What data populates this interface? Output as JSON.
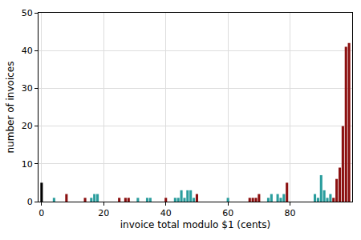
{
  "chart_data": {
    "type": "bar",
    "x_label": "invoice total modulo $1 (cents)",
    "y_label": "number of invoices",
    "x": [
      0,
      4,
      8,
      14,
      16,
      17,
      18,
      25,
      27,
      28,
      31,
      34,
      35,
      40,
      43,
      44,
      45,
      46,
      47,
      48,
      49,
      50,
      60,
      67,
      68,
      69,
      70,
      73,
      74,
      76,
      77,
      78,
      79,
      88,
      89,
      90,
      91,
      92,
      93,
      94,
      95,
      96,
      97,
      98,
      99
    ],
    "values": [
      5,
      1,
      2,
      1,
      1,
      2,
      2,
      1,
      1,
      1,
      1,
      1,
      1,
      1,
      1,
      1,
      3,
      1,
      3,
      3,
      1,
      2,
      1,
      1,
      1,
      1,
      2,
      1,
      2,
      2,
      1,
      2,
      5,
      2,
      1,
      7,
      3,
      1,
      2,
      1,
      6,
      9,
      20,
      41,
      42
    ],
    "colors": [
      "#000000",
      "#2a9d9d",
      "#8b1010",
      "#8b1010",
      "#2a9d9d",
      "#2a9d9d",
      "#2a9d9d",
      "#8b1010",
      "#8b1010",
      "#8b1010",
      "#2a9d9d",
      "#2a9d9d",
      "#2a9d9d",
      "#8b1010",
      "#2a9d9d",
      "#2a9d9d",
      "#2a9d9d",
      "#2a9d9d",
      "#2a9d9d",
      "#2a9d9d",
      "#2a9d9d",
      "#8b1010",
      "#2a9d9d",
      "#8b1010",
      "#8b1010",
      "#8b1010",
      "#8b1010",
      "#2a9d9d",
      "#2a9d9d",
      "#2a9d9d",
      "#2a9d9d",
      "#2a9d9d",
      "#8b1010",
      "#2a9d9d",
      "#2a9d9d",
      "#2a9d9d",
      "#2a9d9d",
      "#2a9d9d",
      "#2a9d9d",
      "#8b1010",
      "#8b1010",
      "#8b1010",
      "#8b1010",
      "#8b1010",
      "#8b1010"
    ],
    "xlim": [
      -1,
      100
    ],
    "xticks": [
      0,
      20,
      40,
      60,
      80
    ],
    "ylim": [
      0,
      50
    ],
    "yticks": [
      0,
      10,
      20,
      30,
      40,
      50
    ],
    "grid": true
  }
}
